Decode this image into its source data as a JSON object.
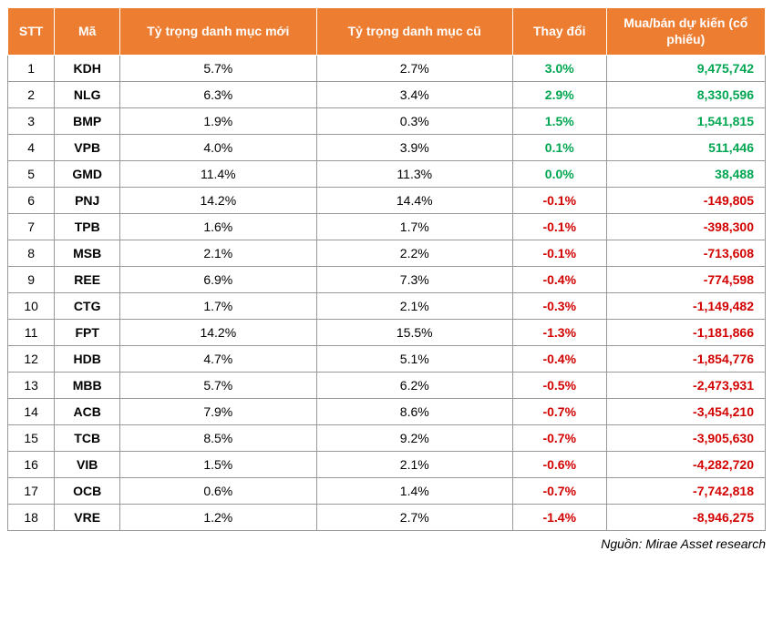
{
  "table": {
    "header_bg": "#ed7d31",
    "header_fg": "#ffffff",
    "border_color": "#999999",
    "positive_color": "#00a651",
    "negative_color": "#d20000",
    "columns": {
      "stt": "STT",
      "ma": "Mã",
      "new_w": "Tỷ trọng danh mục mới",
      "old_w": "Tỷ trọng danh mục cũ",
      "change": "Thay đổi",
      "vol": "Mua/bán dự kiến (cổ phiếu)"
    },
    "rows": [
      {
        "stt": "1",
        "ma": "KDH",
        "new_w": "5.7%",
        "old_w": "2.7%",
        "change": "3.0%",
        "vol": "9,475,742",
        "dir": "pos"
      },
      {
        "stt": "2",
        "ma": "NLG",
        "new_w": "6.3%",
        "old_w": "3.4%",
        "change": "2.9%",
        "vol": "8,330,596",
        "dir": "pos"
      },
      {
        "stt": "3",
        "ma": "BMP",
        "new_w": "1.9%",
        "old_w": "0.3%",
        "change": "1.5%",
        "vol": "1,541,815",
        "dir": "pos"
      },
      {
        "stt": "4",
        "ma": "VPB",
        "new_w": "4.0%",
        "old_w": "3.9%",
        "change": "0.1%",
        "vol": "511,446",
        "dir": "pos"
      },
      {
        "stt": "5",
        "ma": "GMD",
        "new_w": "11.4%",
        "old_w": "11.3%",
        "change": "0.0%",
        "vol": "38,488",
        "dir": "pos"
      },
      {
        "stt": "6",
        "ma": "PNJ",
        "new_w": "14.2%",
        "old_w": "14.4%",
        "change": "-0.1%",
        "vol": "-149,805",
        "dir": "neg"
      },
      {
        "stt": "7",
        "ma": "TPB",
        "new_w": "1.6%",
        "old_w": "1.7%",
        "change": "-0.1%",
        "vol": "-398,300",
        "dir": "neg"
      },
      {
        "stt": "8",
        "ma": "MSB",
        "new_w": "2.1%",
        "old_w": "2.2%",
        "change": "-0.1%",
        "vol": "-713,608",
        "dir": "neg"
      },
      {
        "stt": "9",
        "ma": "REE",
        "new_w": "6.9%",
        "old_w": "7.3%",
        "change": "-0.4%",
        "vol": "-774,598",
        "dir": "neg"
      },
      {
        "stt": "10",
        "ma": "CTG",
        "new_w": "1.7%",
        "old_w": "2.1%",
        "change": "-0.3%",
        "vol": "-1,149,482",
        "dir": "neg"
      },
      {
        "stt": "11",
        "ma": "FPT",
        "new_w": "14.2%",
        "old_w": "15.5%",
        "change": "-1.3%",
        "vol": "-1,181,866",
        "dir": "neg"
      },
      {
        "stt": "12",
        "ma": "HDB",
        "new_w": "4.7%",
        "old_w": "5.1%",
        "change": "-0.4%",
        "vol": "-1,854,776",
        "dir": "neg"
      },
      {
        "stt": "13",
        "ma": "MBB",
        "new_w": "5.7%",
        "old_w": "6.2%",
        "change": "-0.5%",
        "vol": "-2,473,931",
        "dir": "neg"
      },
      {
        "stt": "14",
        "ma": "ACB",
        "new_w": "7.9%",
        "old_w": "8.6%",
        "change": "-0.7%",
        "vol": "-3,454,210",
        "dir": "neg"
      },
      {
        "stt": "15",
        "ma": "TCB",
        "new_w": "8.5%",
        "old_w": "9.2%",
        "change": "-0.7%",
        "vol": "-3,905,630",
        "dir": "neg"
      },
      {
        "stt": "16",
        "ma": "VIB",
        "new_w": "1.5%",
        "old_w": "2.1%",
        "change": "-0.6%",
        "vol": "-4,282,720",
        "dir": "neg"
      },
      {
        "stt": "17",
        "ma": "OCB",
        "new_w": "0.6%",
        "old_w": "1.4%",
        "change": "-0.7%",
        "vol": "-7,742,818",
        "dir": "neg"
      },
      {
        "stt": "18",
        "ma": "VRE",
        "new_w": "1.2%",
        "old_w": "2.7%",
        "change": "-1.4%",
        "vol": "-8,946,275",
        "dir": "neg"
      }
    ]
  },
  "source": "Nguồn: Mirae Asset research"
}
